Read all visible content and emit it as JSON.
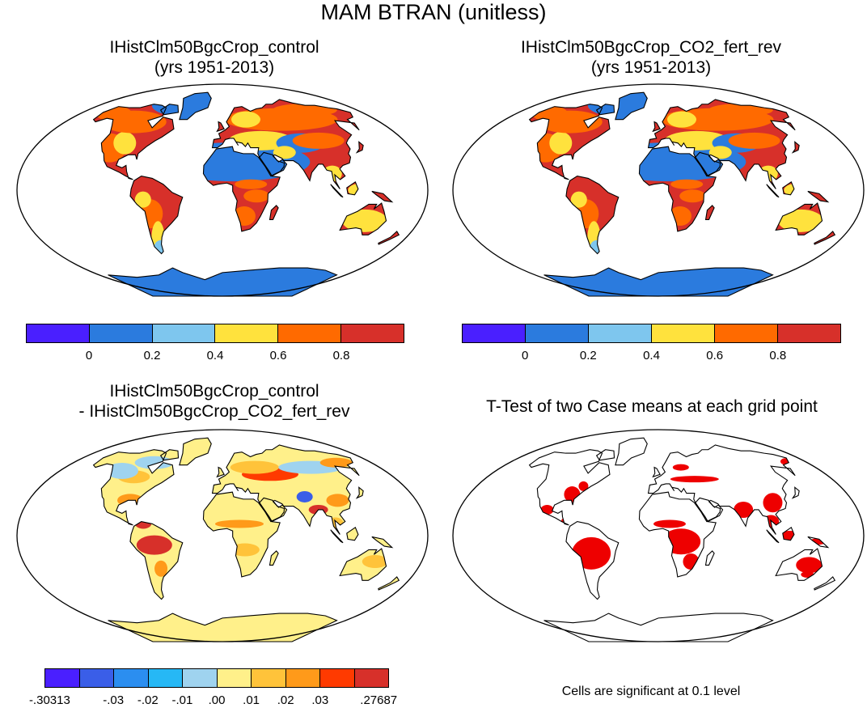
{
  "figure_title": "MAM BTRAN (unitless)",
  "panels": [
    {
      "title_line1": "IHistClm50BgcCrop_control",
      "title_line2": "(yrs 1951-2013)"
    },
    {
      "title_line1": "IHistClm50BgcCrop_CO2_fert_rev",
      "title_line2": "(yrs 1951-2013)"
    },
    {
      "title_line1": "IHistClm50BgcCrop_control",
      "title_line2": "- IHistClm50BgcCrop_CO2_fert_rev"
    },
    {
      "title_line1": "T-Test of two Case means at each grid point",
      "title_line2": ""
    }
  ],
  "colorbar_absolute": {
    "colors": [
      "#4a1fff",
      "#2b7bde",
      "#7ec6ee",
      "#ffe23d",
      "#ff6a00",
      "#d7302a"
    ],
    "labels": [
      "0",
      "0.2",
      "0.4",
      "0.6",
      "0.8"
    ]
  },
  "colorbar_difference": {
    "colors": [
      "#4a1fff",
      "#3a5ee8",
      "#2b8ef0",
      "#26b8f5",
      "#9fd3ef",
      "#fff08a",
      "#ffc33a",
      "#ff9a1a",
      "#ff3a00",
      "#d7302a"
    ],
    "labels": [
      ".30313",
      "-.03",
      "-.02",
      "-.01",
      ".00",
      ".01",
      ".02",
      ".03",
      ".27687"
    ]
  },
  "significance_note": "Cells are significant at 0.1 level",
  "colors": {
    "map_ocean": "#ffffff",
    "coast": "#000000",
    "significant": "#ee0000",
    "dry_blue": "#2b7bde",
    "wet_red": "#d7302a",
    "mid_orange": "#ff6a00",
    "mid_yellow": "#ffe23d",
    "diff_pale": "#fff08a"
  }
}
